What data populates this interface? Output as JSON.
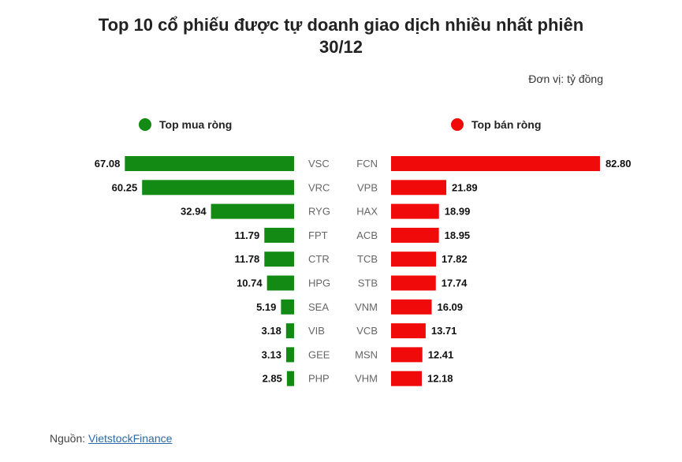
{
  "title_line1": "Top 10 cổ phiếu được tự doanh giao dịch nhiều nhất phiên",
  "title_line2": "30/12",
  "unit": "Đơn vị: tỷ đồng",
  "source_prefix": "Nguồn: ",
  "source_link": "VietstockFinance",
  "colors": {
    "buy": "#138a13",
    "sell": "#f00a0a"
  },
  "chart_data": [
    {
      "type": "bar",
      "orientation": "horizontal",
      "series_name": "Top mua ròng",
      "categories": [
        "VSC",
        "VRC",
        "RYG",
        "FPT",
        "CTR",
        "HPG",
        "SEA",
        "VIB",
        "GEE",
        "PHP"
      ],
      "values": [
        67.08,
        60.25,
        32.94,
        11.79,
        11.78,
        10.74,
        5.19,
        3.18,
        3.13,
        2.85
      ]
    },
    {
      "type": "bar",
      "orientation": "horizontal",
      "series_name": "Top bán ròng",
      "categories": [
        "FCN",
        "VPB",
        "HAX",
        "ACB",
        "TCB",
        "STB",
        "VNM",
        "VCB",
        "MSN",
        "VHM"
      ],
      "values": [
        82.8,
        21.89,
        18.99,
        18.95,
        17.82,
        17.74,
        16.09,
        13.71,
        12.41,
        12.18
      ]
    }
  ]
}
